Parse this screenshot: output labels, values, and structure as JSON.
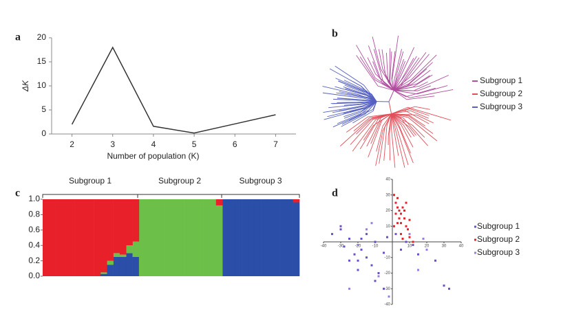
{
  "chart_data": [
    {
      "panel_label": "a",
      "type": "line",
      "x": [
        2,
        3,
        4,
        5,
        6,
        7
      ],
      "values": [
        2,
        18,
        1.6,
        0.2,
        2.1,
        4
      ],
      "color": "#333333",
      "xlim": [
        1.5,
        7.5
      ],
      "ylim": [
        0,
        20
      ],
      "xticks": [
        2,
        3,
        4,
        5,
        6,
        7
      ],
      "yticks": [
        0,
        5,
        10,
        15,
        20
      ],
      "xlabel": "Number of population (K)",
      "ylabel": "ΔK"
    },
    {
      "panel_label": "b",
      "type": "tree",
      "series": [
        {
          "name": "Subgroup 1",
          "color": "#b04d9e"
        },
        {
          "name": "Subgroup 2",
          "color": "#e0505a"
        },
        {
          "name": "Subgroup 3",
          "color": "#5560c0"
        }
      ]
    },
    {
      "panel_label": "c",
      "type": "stacked_bar",
      "group_labels": [
        "Subgroup 1",
        "Subgroup 2",
        "Subgroup 3"
      ],
      "ylim": [
        0,
        1
      ],
      "yticks": [
        {
          "value": 0,
          "label": "0.0"
        },
        0.2,
        0.4,
        0.6,
        0.8,
        {
          "value": 1,
          "label": "1.0"
        }
      ],
      "series": [
        {
          "color": "#2b4ea8",
          "values": [
            0,
            0,
            0,
            0,
            0,
            0,
            0,
            0,
            0,
            0.03,
            0.15,
            0.25,
            0.25,
            0.3,
            0.25,
            0,
            0,
            0,
            0,
            0,
            0,
            0,
            0,
            0,
            0,
            0,
            0,
            0,
            1,
            1,
            1,
            1,
            1,
            1,
            1,
            1,
            1,
            1,
            1,
            0.96
          ]
        },
        {
          "color": "#6cc04a",
          "values": [
            0,
            0,
            0,
            0,
            0,
            0,
            0,
            0,
            0,
            0.02,
            0.05,
            0.05,
            0.03,
            0.1,
            0.2,
            1,
            1,
            1,
            1,
            1,
            1,
            1,
            1,
            1,
            1,
            1,
            1,
            0.92,
            0,
            0,
            0,
            0,
            0,
            0,
            0,
            0,
            0,
            0,
            0,
            0
          ]
        },
        {
          "color": "#e8202a",
          "values": [
            1,
            1,
            1,
            1,
            1,
            1,
            1,
            1,
            1,
            0.95,
            0.8,
            0.7,
            0.72,
            0.6,
            0.55,
            0,
            0,
            0,
            0,
            0,
            0,
            0,
            0,
            0,
            0,
            0,
            0,
            0.08,
            0,
            0,
            0,
            0,
            0,
            0,
            0,
            0,
            0,
            0,
            0,
            0.04
          ]
        }
      ]
    },
    {
      "panel_label": "d",
      "type": "scatter",
      "xlim": [
        -40,
        40
      ],
      "ylim": [
        -40,
        40
      ],
      "xticks": [
        -40,
        -30,
        -20,
        -10,
        10,
        20,
        30,
        40
      ],
      "yticks": [
        -40,
        -30,
        -20,
        -10,
        10,
        20,
        30,
        40
      ],
      "series": [
        {
          "name": "Subgroup 1",
          "color": "#6b4fc8",
          "x": [
            -35,
            -30,
            -28,
            -25,
            -22,
            -20,
            -18,
            -15,
            -12,
            -10,
            -8,
            -5,
            -3,
            2,
            5,
            8,
            12,
            15,
            25,
            30,
            33,
            -20,
            -15,
            -25,
            -10,
            -5,
            -30,
            -18
          ],
          "values": [
            5,
            8,
            -3,
            2,
            -8,
            -12,
            -5,
            -10,
            -15,
            0,
            -20,
            -7,
            3,
            5,
            -5,
            0,
            -2,
            -8,
            -12,
            -28,
            -30,
            -18,
            5,
            -12,
            -25,
            -30,
            10,
            2
          ]
        },
        {
          "name": "Subgroup 2",
          "color": "#e8202a",
          "x": [
            1,
            2,
            3,
            4,
            5,
            6,
            7,
            8,
            3,
            5,
            9,
            10,
            2,
            4,
            6,
            12,
            8,
            1,
            5,
            7,
            3,
            10
          ],
          "values": [
            30,
            25,
            28,
            20,
            18,
            22,
            15,
            10,
            12,
            5,
            8,
            3,
            18,
            15,
            2,
            0,
            25,
            10,
            12,
            20,
            22,
            14
          ]
        },
        {
          "name": "Subgroup 3",
          "color": "#9a7be0",
          "x": [
            -20,
            -15,
            -8,
            10,
            15,
            20,
            -2,
            -25,
            18,
            -12
          ],
          "values": [
            -2,
            8,
            -22,
            5,
            -18,
            -5,
            -35,
            -30,
            2,
            12
          ]
        }
      ]
    }
  ]
}
